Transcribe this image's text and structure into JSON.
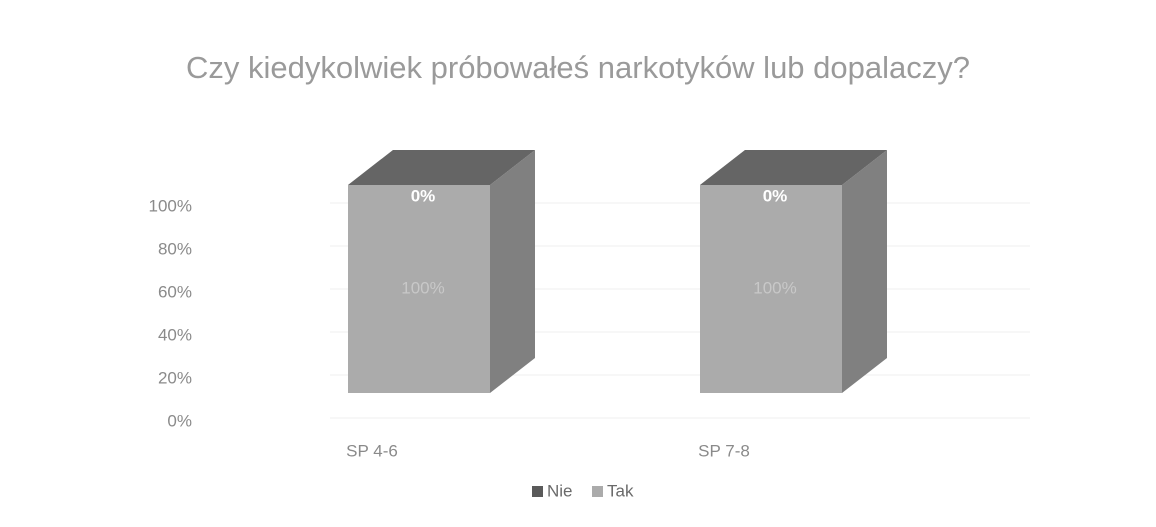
{
  "chart_data": {
    "type": "bar3d_stacked",
    "title": "Czy kiedykolwiek próbowałeś narkotyków lub dopalaczy?",
    "categories": [
      "SP 4-6",
      "SP 7-8"
    ],
    "series": [
      {
        "name": "Nie",
        "color": "#5a5a5a",
        "values": [
          0,
          0
        ],
        "value_labels": [
          "0%",
          "0%"
        ]
      },
      {
        "name": "Tak",
        "color": "#ababab",
        "values": [
          100,
          100
        ],
        "value_labels": [
          "100%",
          "100%"
        ]
      }
    ],
    "ylim": [
      0,
      100
    ],
    "yticks": [
      {
        "value": 0,
        "label": "0%"
      },
      {
        "value": 20,
        "label": "20%"
      },
      {
        "value": 40,
        "label": "40%"
      },
      {
        "value": 60,
        "label": "60%"
      },
      {
        "value": 80,
        "label": "80%"
      },
      {
        "value": 100,
        "label": "100%"
      }
    ],
    "grid": true,
    "legend": "bottom"
  }
}
